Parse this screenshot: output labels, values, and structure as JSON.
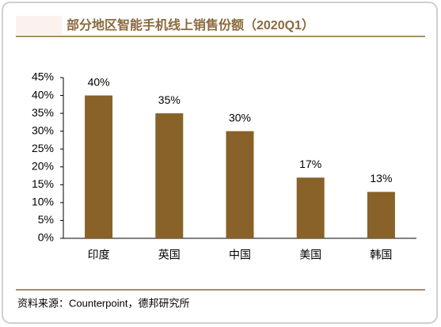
{
  "chart_data": {
    "type": "bar",
    "title": "部分地区智能手机线上销售份额（2020Q1）",
    "source": "资料来源：Counterpoint，德邦研究所",
    "categories": [
      "印度",
      "英国",
      "中国",
      "美国",
      "韩国"
    ],
    "values": [
      40,
      35,
      30,
      17,
      13
    ],
    "value_labels": [
      "40%",
      "35%",
      "30%",
      "17%",
      "13%"
    ],
    "color": "#886228",
    "ylim": [
      0,
      45
    ],
    "yticks": [
      {
        "value": 0,
        "label": "0%"
      },
      {
        "value": 5,
        "label": "5%"
      },
      {
        "value": 10,
        "label": "10%"
      },
      {
        "value": 15,
        "label": "15%"
      },
      {
        "value": 20,
        "label": "20%"
      },
      {
        "value": 25,
        "label": "25%"
      },
      {
        "value": 30,
        "label": "30%"
      },
      {
        "value": 35,
        "label": "35%"
      },
      {
        "value": 40,
        "label": "40%"
      },
      {
        "value": 45,
        "label": "45%"
      }
    ],
    "grid": false
  }
}
